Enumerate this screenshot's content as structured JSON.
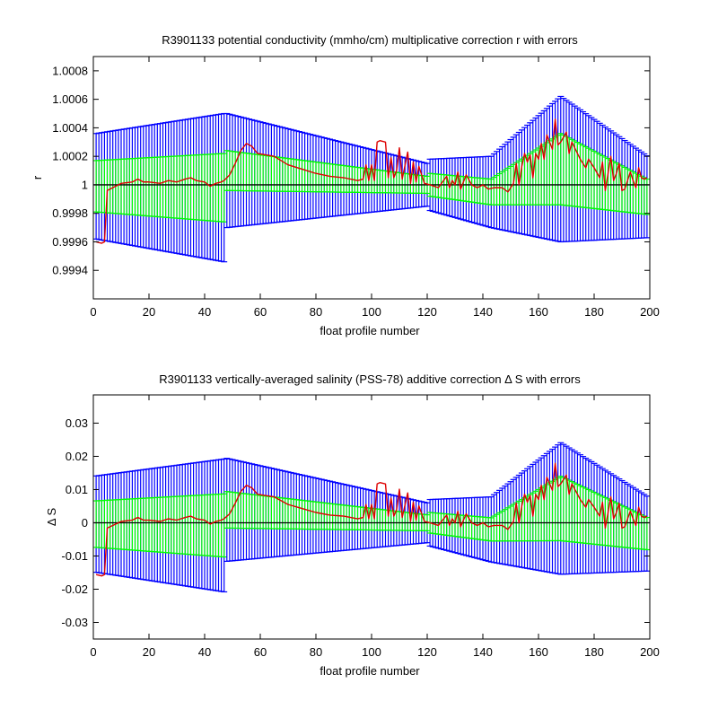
{
  "chart_data": [
    {
      "type": "line",
      "title": "R3901133 potential conductivity (mmho/cm) multiplicative correction r with errors",
      "xlabel": "float profile number",
      "ylabel": "r",
      "xlim": [
        0,
        200
      ],
      "ylim": [
        0.9992,
        1.0009
      ],
      "xticks": [
        0,
        20,
        40,
        60,
        80,
        100,
        120,
        140,
        160,
        180,
        200
      ],
      "xticklabels": [
        "0",
        "20",
        "40",
        "60",
        "80",
        "100",
        "120",
        "140",
        "160",
        "180",
        "200"
      ],
      "yticks": [
        0.9994,
        0.9996,
        0.9998,
        1.0,
        1.0002,
        1.0004,
        1.0006,
        1.0008
      ],
      "yticklabels": [
        "0.9994",
        "0.9996",
        "0.9998",
        "1",
        "1.0002",
        "1.0004",
        "1.0006",
        "1.0008"
      ],
      "reference_line": 1.0,
      "grid": false,
      "colors": {
        "outer_error": "#0000ff",
        "inner_error": "#00ff00",
        "correction": "#dd0000",
        "reference": "#000000"
      },
      "profiles": {
        "x": [
          1,
          47,
          48,
          120,
          121,
          143,
          168,
          200
        ],
        "outer_half_width": [
          0.00037,
          0.00052,
          0.0004,
          0.00015,
          0.00018,
          0.00025,
          0.00051,
          0.00028
        ],
        "inner_half_width": [
          0.00018,
          0.00024,
          0.00014,
          6e-05,
          8e-05,
          9e-05,
          0.00025,
          0.00012
        ],
        "center_offset": [
          -1e-05,
          -2e-05,
          0.0001,
          0.0,
          0.0,
          -5e-05,
          0.00011,
          -9e-05
        ],
        "correction": [
          [
            1,
            -0.0004
          ],
          [
            3,
            -0.00041
          ],
          [
            4,
            -0.0004
          ],
          [
            5,
            -4e-05
          ],
          [
            8,
            -1e-05
          ],
          [
            10,
            1e-05
          ],
          [
            14,
            2e-05
          ],
          [
            16,
            4e-05
          ],
          [
            18,
            2e-05
          ],
          [
            20,
            2e-05
          ],
          [
            24,
            1e-05
          ],
          [
            27,
            3e-05
          ],
          [
            30,
            2e-05
          ],
          [
            33,
            4e-05
          ],
          [
            35,
            5e-05
          ],
          [
            37,
            3e-05
          ],
          [
            40,
            2e-05
          ],
          [
            42,
            -1e-05
          ],
          [
            44,
            1e-05
          ],
          [
            46,
            2e-05
          ],
          [
            47,
            3e-05
          ],
          [
            49,
            7e-05
          ],
          [
            51,
            0.00015
          ],
          [
            53,
            0.00024
          ],
          [
            55,
            0.00029
          ],
          [
            57,
            0.00027
          ],
          [
            59,
            0.00022
          ],
          [
            62,
            0.00021
          ],
          [
            65,
            0.0002
          ],
          [
            70,
            0.00014
          ],
          [
            75,
            0.00011
          ],
          [
            80,
            8e-05
          ],
          [
            85,
            6e-05
          ],
          [
            90,
            5e-05
          ],
          [
            95,
            3e-05
          ],
          [
            97,
            4e-05
          ],
          [
            98,
            0.00014
          ],
          [
            99,
            3e-05
          ],
          [
            100,
            0.00014
          ],
          [
            101,
            3e-05
          ],
          [
            102,
            0.0003
          ],
          [
            103,
            0.00031
          ],
          [
            105,
            0.0003
          ],
          [
            106,
            5e-05
          ],
          [
            107,
            0.00019
          ],
          [
            108,
            5e-05
          ],
          [
            109,
            0.0001
          ],
          [
            110,
            0.00026
          ],
          [
            111,
            4e-05
          ],
          [
            113,
            0.00023
          ],
          [
            114,
            1e-05
          ],
          [
            115,
            0.00016
          ],
          [
            116,
            2e-05
          ],
          [
            117,
            0.00013
          ],
          [
            119,
            1e-05
          ],
          [
            121,
            0.0
          ],
          [
            124,
            -2e-05
          ],
          [
            127,
            6e-05
          ],
          [
            128,
            -2e-05
          ],
          [
            129,
            3e-05
          ],
          [
            130,
            0.0
          ],
          [
            131,
            9e-05
          ],
          [
            132,
            -3e-05
          ],
          [
            134,
            7e-05
          ],
          [
            136,
            0.0
          ],
          [
            138,
            -2e-05
          ],
          [
            140,
            0.0
          ],
          [
            142,
            -3e-05
          ],
          [
            144,
            -2e-05
          ],
          [
            147,
            -2e-05
          ],
          [
            149,
            -5e-05
          ],
          [
            151,
            1e-05
          ],
          [
            152,
            0.00015
          ],
          [
            153,
            0.0
          ],
          [
            154,
            0.00013
          ],
          [
            155,
            0.00022
          ],
          [
            156,
            0.00016
          ],
          [
            157,
            0.00021
          ],
          [
            158,
            5e-05
          ],
          [
            159,
            0.00022
          ],
          [
            160,
            0.00018
          ],
          [
            161,
            0.00029
          ],
          [
            162,
            0.00018
          ],
          [
            163,
            0.00035
          ],
          [
            165,
            0.00025
          ],
          [
            166,
            0.00046
          ],
          [
            167,
            0.00028
          ],
          [
            168,
            0.0003
          ],
          [
            170,
            0.00037
          ],
          [
            171,
            0.00022
          ],
          [
            172,
            0.0003
          ],
          [
            174,
            0.00022
          ],
          [
            175,
            0.00018
          ],
          [
            177,
            0.00012
          ],
          [
            178,
            0.00018
          ],
          [
            180,
            0.00012
          ],
          [
            182,
            5e-05
          ],
          [
            183,
            0.00016
          ],
          [
            184,
            -4e-05
          ],
          [
            186,
            0.0002
          ],
          [
            187,
            3e-05
          ],
          [
            188,
            8e-05
          ],
          [
            189,
            0.00015
          ],
          [
            190,
            -4e-05
          ],
          [
            191,
            -3e-05
          ],
          [
            193,
            9e-05
          ],
          [
            194,
            3e-05
          ],
          [
            195,
            -2e-05
          ],
          [
            196,
            0.00012
          ],
          [
            197,
            5e-05
          ],
          [
            198,
            4e-05
          ],
          [
            199,
            5e-05
          ]
        ]
      }
    },
    {
      "type": "line",
      "title": "R3901133 vertically-averaged salinity (PSS-78) additive correction Δ S with errors",
      "xlabel": "float profile number",
      "ylabel": "Δ S",
      "xlim": [
        0,
        200
      ],
      "ylim": [
        -0.035,
        0.0385
      ],
      "xticks": [
        0,
        20,
        40,
        60,
        80,
        100,
        120,
        140,
        160,
        180,
        200
      ],
      "xticklabels": [
        "0",
        "20",
        "40",
        "60",
        "80",
        "100",
        "120",
        "140",
        "160",
        "180",
        "200"
      ],
      "yticks": [
        -0.03,
        -0.02,
        -0.01,
        0,
        0.01,
        0.02,
        0.03
      ],
      "yticklabels": [
        "-0.03",
        "-0.02",
        "-0.01",
        "0",
        "0.01",
        "0.02",
        "0.03"
      ],
      "reference_line": 0,
      "grid": false,
      "colors": {
        "outer_error": "#0000ff",
        "inner_error": "#00ff00",
        "correction": "#dd0000",
        "reference": "#000000"
      },
      "profiles": {
        "x": [
          1,
          47,
          48,
          120,
          121,
          143,
          168,
          200
        ],
        "outer_half_width": [
          0.0145,
          0.02,
          0.0155,
          0.006,
          0.007,
          0.0098,
          0.0198,
          0.011
        ],
        "inner_half_width": [
          0.007,
          0.0095,
          0.0055,
          0.0024,
          0.0031,
          0.0035,
          0.0097,
          0.0047
        ],
        "center_offset": [
          -0.0004,
          -0.0008,
          0.0039,
          0.0,
          0.0,
          -0.002,
          0.0043,
          -0.0035
        ],
        "correction": [
          [
            1,
            -0.0156
          ],
          [
            3,
            -0.016
          ],
          [
            4,
            -0.0156
          ],
          [
            5,
            -0.0016
          ],
          [
            8,
            -0.0004
          ],
          [
            10,
            0.0004
          ],
          [
            14,
            0.0008
          ],
          [
            16,
            0.0016
          ],
          [
            18,
            0.0008
          ],
          [
            20,
            0.0008
          ],
          [
            24,
            0.0004
          ],
          [
            27,
            0.0012
          ],
          [
            30,
            0.0008
          ],
          [
            33,
            0.0016
          ],
          [
            35,
            0.002
          ],
          [
            37,
            0.0012
          ],
          [
            40,
            0.0008
          ],
          [
            42,
            -0.0004
          ],
          [
            44,
            0.0004
          ],
          [
            46,
            0.0008
          ],
          [
            47,
            0.0012
          ],
          [
            49,
            0.0027
          ],
          [
            51,
            0.0059
          ],
          [
            53,
            0.0094
          ],
          [
            55,
            0.0113
          ],
          [
            57,
            0.0105
          ],
          [
            59,
            0.0086
          ],
          [
            62,
            0.0082
          ],
          [
            65,
            0.0078
          ],
          [
            70,
            0.0055
          ],
          [
            75,
            0.0043
          ],
          [
            80,
            0.0031
          ],
          [
            85,
            0.0023
          ],
          [
            90,
            0.002
          ],
          [
            95,
            0.0012
          ],
          [
            97,
            0.0016
          ],
          [
            98,
            0.0055
          ],
          [
            99,
            0.0012
          ],
          [
            100,
            0.0055
          ],
          [
            101,
            0.0012
          ],
          [
            102,
            0.0117
          ],
          [
            103,
            0.0121
          ],
          [
            105,
            0.0117
          ],
          [
            106,
            0.002
          ],
          [
            107,
            0.0074
          ],
          [
            108,
            0.002
          ],
          [
            109,
            0.0039
          ],
          [
            110,
            0.0101
          ],
          [
            111,
            0.0016
          ],
          [
            113,
            0.009
          ],
          [
            114,
            0.0004
          ],
          [
            115,
            0.0062
          ],
          [
            116,
            0.0008
          ],
          [
            117,
            0.0051
          ],
          [
            119,
            0.0004
          ],
          [
            121,
            0.0
          ],
          [
            124,
            -0.0008
          ],
          [
            127,
            0.0023
          ],
          [
            128,
            -0.0008
          ],
          [
            129,
            0.0012
          ],
          [
            130,
            0.0
          ],
          [
            131,
            0.0035
          ],
          [
            132,
            -0.0012
          ],
          [
            134,
            0.0027
          ],
          [
            136,
            0.0
          ],
          [
            138,
            -0.0008
          ],
          [
            140,
            0.0
          ],
          [
            142,
            -0.0012
          ],
          [
            144,
            -0.0008
          ],
          [
            147,
            -0.0008
          ],
          [
            149,
            -0.002
          ],
          [
            151,
            0.0004
          ],
          [
            152,
            0.0059
          ],
          [
            153,
            0.0
          ],
          [
            154,
            0.0051
          ],
          [
            155,
            0.0086
          ],
          [
            156,
            0.0062
          ],
          [
            157,
            0.0082
          ],
          [
            158,
            0.002
          ],
          [
            159,
            0.0086
          ],
          [
            160,
            0.007
          ],
          [
            161,
            0.0113
          ],
          [
            162,
            0.007
          ],
          [
            163,
            0.0137
          ],
          [
            165,
            0.0098
          ],
          [
            166,
            0.0179
          ],
          [
            167,
            0.0109
          ],
          [
            168,
            0.0117
          ],
          [
            170,
            0.0144
          ],
          [
            171,
            0.0086
          ],
          [
            172,
            0.0117
          ],
          [
            174,
            0.0086
          ],
          [
            175,
            0.007
          ],
          [
            177,
            0.0047
          ],
          [
            178,
            0.007
          ],
          [
            180,
            0.0047
          ],
          [
            182,
            0.002
          ],
          [
            183,
            0.0062
          ],
          [
            184,
            -0.0016
          ],
          [
            186,
            0.0078
          ],
          [
            187,
            0.0012
          ],
          [
            188,
            0.0031
          ],
          [
            189,
            0.0059
          ],
          [
            190,
            -0.0016
          ],
          [
            191,
            -0.0012
          ],
          [
            193,
            0.0035
          ],
          [
            194,
            0.0012
          ],
          [
            195,
            -0.0008
          ],
          [
            196,
            0.0047
          ],
          [
            197,
            0.002
          ],
          [
            198,
            0.0016
          ],
          [
            199,
            0.002
          ]
        ]
      }
    }
  ]
}
